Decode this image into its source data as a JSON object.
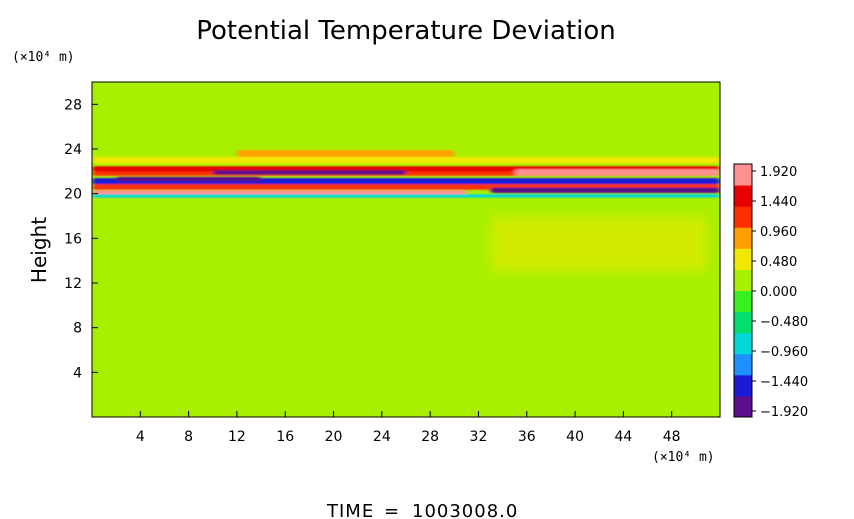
{
  "chart_data": {
    "type": "heatmap",
    "title": "Potential Temperature Deviation",
    "xlabel": "",
    "ylabel": "Height",
    "x_unit": "(×10⁴ m)",
    "y_unit": "(×10⁴ m)",
    "xlim": [
      0,
      52
    ],
    "ylim": [
      0,
      30
    ],
    "x_ticks": [
      4,
      8,
      12,
      16,
      20,
      24,
      28,
      32,
      36,
      40,
      44,
      48
    ],
    "y_ticks": [
      4,
      8,
      12,
      16,
      20,
      24,
      28
    ],
    "colorbar": {
      "labels": [
        "1.920",
        "1.440",
        "0.960",
        "0.480",
        "0.000",
        "−0.480",
        "−0.960",
        "−1.440",
        "−1.920"
      ],
      "range": [
        -1.92,
        1.92
      ],
      "colors": [
        "#5b0f8c",
        "#1b1bd6",
        "#1e90ff",
        "#00d8d8",
        "#00e070",
        "#38f020",
        "#a8f000",
        "#f0e800",
        "#ffa000",
        "#ff3000",
        "#e80000",
        "#ff9090"
      ]
    },
    "background_value": 0.24,
    "bands": [
      {
        "x": [
          0,
          52
        ],
        "y": 22.2,
        "thickness": 0.5,
        "value": 1.44
      },
      {
        "x": [
          0,
          52
        ],
        "y": 21.8,
        "thickness": 0.4,
        "value": 0.96
      },
      {
        "x": [
          0,
          52
        ],
        "y": 21.1,
        "thickness": 0.6,
        "value": -1.44
      },
      {
        "x": [
          10,
          26
        ],
        "y": 21.9,
        "thickness": 0.4,
        "value": -1.92
      },
      {
        "x": [
          2,
          14
        ],
        "y": 21.3,
        "thickness": 0.4,
        "value": -1.92
      },
      {
        "x": [
          0,
          52
        ],
        "y": 20.6,
        "thickness": 0.5,
        "value": 1.2
      },
      {
        "x": [
          0,
          31
        ],
        "y": 20.1,
        "thickness": 0.4,
        "value": 1.92
      },
      {
        "x": [
          33,
          52
        ],
        "y": 20.3,
        "thickness": 0.5,
        "value": -1.92
      },
      {
        "x": [
          35,
          52
        ],
        "y": 21.9,
        "thickness": 0.6,
        "value": 1.92
      },
      {
        "x": [
          0,
          52
        ],
        "y": 19.8,
        "thickness": 0.3,
        "value": -0.96
      },
      {
        "x": [
          0,
          52
        ],
        "y": 23.0,
        "thickness": 0.6,
        "value": 0.6
      },
      {
        "x": [
          12,
          30
        ],
        "y": 23.6,
        "thickness": 0.6,
        "value": 0.7
      }
    ]
  },
  "footer": {
    "time_label": "TIME",
    "equals": "=",
    "time_value": "1003008.0"
  }
}
